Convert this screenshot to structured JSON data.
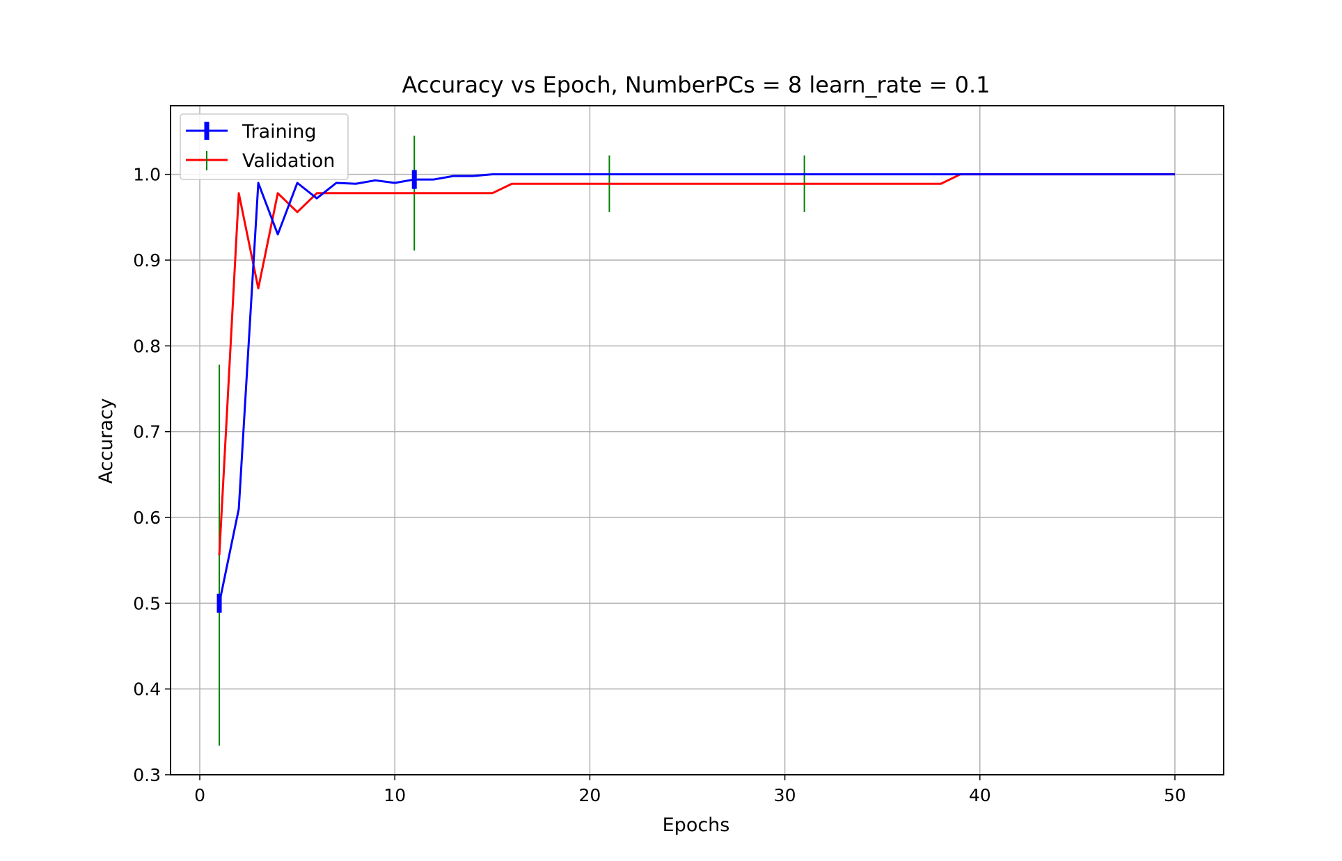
{
  "chart_data": {
    "type": "line",
    "title": "Accuracy vs Epoch, NumberPCs = 8 learn_rate = 0.1",
    "xlabel": "Epochs",
    "ylabel": "Accuracy",
    "xlim": [
      -1.5,
      52.5
    ],
    "ylim": [
      0.3,
      1.08
    ],
    "xticks": [
      0,
      10,
      20,
      30,
      40,
      50
    ],
    "yticks": [
      0.3,
      0.4,
      0.5,
      0.6,
      0.7,
      0.8,
      0.9,
      1.0
    ],
    "xtick_labels": [
      "0",
      "10",
      "20",
      "30",
      "40",
      "50"
    ],
    "ytick_labels": [
      "0.3",
      "0.4",
      "0.5",
      "0.6",
      "0.7",
      "0.8",
      "0.9",
      "1.0"
    ],
    "grid": true,
    "legend": "upper left",
    "colors": {
      "training": "#0000ff",
      "validation": "#ff0000",
      "validation_errorbar": "#008000",
      "grid": "#b0b0b0"
    },
    "series": [
      {
        "name": "Training",
        "color": "#0000ff",
        "x": [
          1,
          2,
          3,
          4,
          5,
          6,
          7,
          8,
          9,
          10,
          11,
          12,
          13,
          14,
          15,
          16,
          17,
          18,
          19,
          20,
          21,
          22,
          23,
          24,
          25,
          26,
          27,
          28,
          29,
          30,
          31,
          32,
          33,
          34,
          35,
          36,
          37,
          38,
          39,
          40,
          41,
          42,
          43,
          44,
          45,
          46,
          47,
          48,
          49,
          50
        ],
        "y": [
          0.5,
          0.61,
          0.99,
          0.93,
          0.99,
          0.972,
          0.99,
          0.989,
          0.993,
          0.99,
          0.994,
          0.994,
          0.998,
          0.998,
          1.0,
          1.0,
          1.0,
          1.0,
          1.0,
          1.0,
          1.0,
          1.0,
          1.0,
          1.0,
          1.0,
          1.0,
          1.0,
          1.0,
          1.0,
          1.0,
          1.0,
          1.0,
          1.0,
          1.0,
          1.0,
          1.0,
          1.0,
          1.0,
          1.0,
          1.0,
          1.0,
          1.0,
          1.0,
          1.0,
          1.0,
          1.0,
          1.0,
          1.0,
          1.0,
          1.0
        ],
        "errorbars": [
          {
            "x": 1,
            "y": 0.5,
            "err": 0.011
          },
          {
            "x": 11,
            "y": 0.994,
            "err": 0.011
          }
        ]
      },
      {
        "name": "Validation",
        "color": "#ff0000",
        "x": [
          1,
          2,
          3,
          4,
          5,
          6,
          7,
          8,
          9,
          10,
          11,
          12,
          13,
          14,
          15,
          16,
          17,
          18,
          19,
          20,
          21,
          22,
          23,
          24,
          25,
          26,
          27,
          28,
          29,
          30,
          31,
          32,
          33,
          34,
          35,
          36,
          37,
          38,
          39,
          40,
          41,
          42,
          43,
          44,
          45,
          46,
          47,
          48,
          49,
          50
        ],
        "y": [
          0.556,
          0.978,
          0.867,
          0.978,
          0.956,
          0.978,
          0.978,
          0.978,
          0.978,
          0.978,
          0.978,
          0.978,
          0.978,
          0.978,
          0.978,
          0.989,
          0.989,
          0.989,
          0.989,
          0.989,
          0.989,
          0.989,
          0.989,
          0.989,
          0.989,
          0.989,
          0.989,
          0.989,
          0.989,
          0.989,
          0.989,
          0.989,
          0.989,
          0.989,
          0.989,
          0.989,
          0.989,
          0.989,
          1.0,
          1.0,
          1.0,
          1.0,
          1.0,
          1.0,
          1.0,
          1.0,
          1.0,
          1.0,
          1.0,
          1.0
        ],
        "errorbars": [
          {
            "x": 1,
            "y": 0.556,
            "err": 0.222
          },
          {
            "x": 11,
            "y": 0.978,
            "err": 0.067
          },
          {
            "x": 21,
            "y": 0.989,
            "err": 0.033
          },
          {
            "x": 31,
            "y": 0.989,
            "err": 0.033
          }
        ]
      }
    ]
  }
}
